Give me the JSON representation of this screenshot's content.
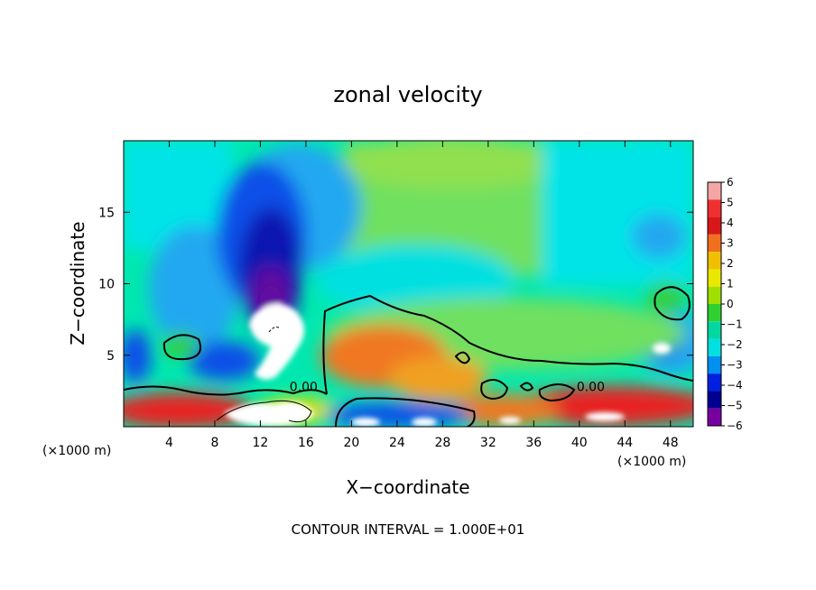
{
  "chart_data": {
    "type": "heatmap",
    "title": "zonal velocity",
    "xlabel": "X−coordinate",
    "ylabel": "Z−coordinate",
    "x_units_left": "(×1000 m)",
    "x_units_right": "(×1000 m)",
    "xlim": [
      0,
      50
    ],
    "ylim": [
      0,
      20
    ],
    "x_ticks": [
      4,
      8,
      12,
      16,
      20,
      24,
      28,
      32,
      36,
      40,
      44,
      48
    ],
    "x_tick_labels": [
      "4",
      "8",
      "12",
      "16",
      "20",
      "24",
      "28",
      "32",
      "36",
      "40",
      "44",
      "48"
    ],
    "y_ticks": [
      5,
      10,
      15
    ],
    "y_tick_labels": [
      "5",
      "10",
      "15"
    ],
    "footer": "CONTOUR INTERVAL = 1.000E+01",
    "contour_labels": [
      {
        "text": "0.00",
        "x": 15.8,
        "y": 2.8
      },
      {
        "text": "0.00",
        "x": 41.0,
        "y": 2.8
      }
    ],
    "colorbar": {
      "levels": [
        6,
        5,
        4,
        3,
        2,
        1,
        0,
        -1,
        -2,
        -3,
        -4,
        -5,
        -6
      ],
      "labels": [
        "6",
        "5",
        "4",
        "3",
        "2",
        "1",
        "0",
        "−1",
        "−2",
        "−3",
        "−4",
        "−5",
        "−6"
      ],
      "colors": [
        "#f4a6a6",
        "#f03030",
        "#d81818",
        "#f07020",
        "#f0c000",
        "#e8e800",
        "#a0e000",
        "#30d030",
        "#00d8a0",
        "#00e0e0",
        "#0090f0",
        "#0020e0",
        "#000090",
        "#7800a0"
      ]
    },
    "field_colors": {
      "background": "#00e8b0",
      "light_green": "#70e060",
      "cyan": "#00e4e8",
      "light_blue": "#20a8f0",
      "blue": "#1050e8",
      "dark_blue": "#0818b0",
      "purple": "#6010a0",
      "orange": "#f07820",
      "red": "#e82020",
      "yellow": "#e0e000",
      "white": "#ffffff"
    }
  }
}
